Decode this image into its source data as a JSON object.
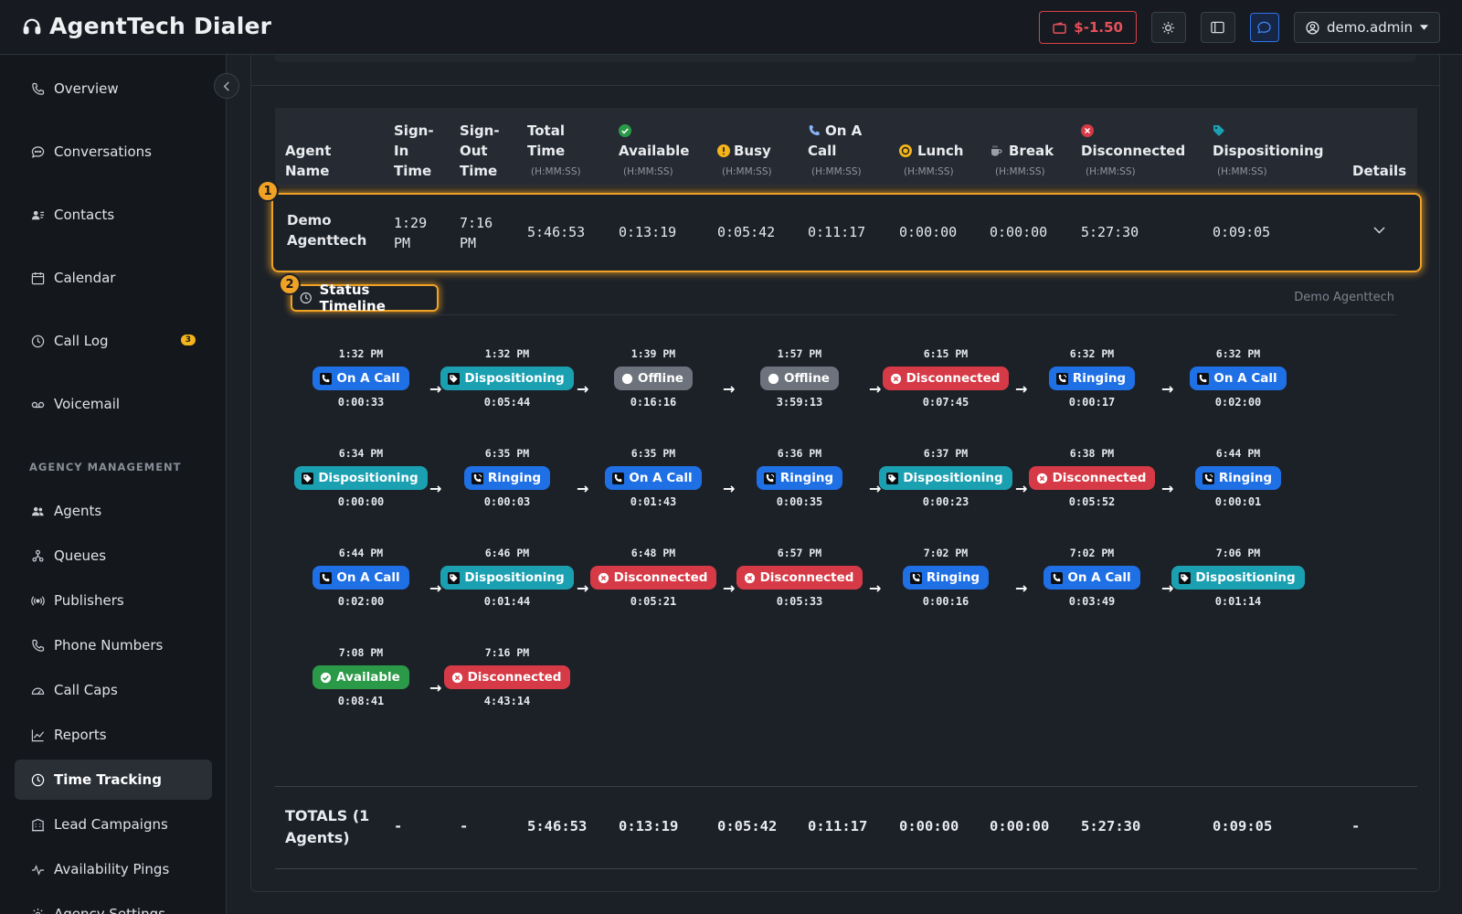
{
  "header": {
    "title": "AgentTech Dialer",
    "balance": "$-1.50",
    "user": "demo.admin"
  },
  "sidebar": {
    "items": [
      {
        "label": "Overview",
        "icon": "phone-icon"
      },
      {
        "label": "Conversations",
        "icon": "chat-icon"
      },
      {
        "label": "Contacts",
        "icon": "contacts-icon"
      },
      {
        "label": "Calendar",
        "icon": "calendar-icon"
      },
      {
        "label": "Call Log",
        "icon": "clock-icon",
        "badge": "3"
      },
      {
        "label": "Voicemail",
        "icon": "voicemail-icon"
      }
    ],
    "section_label": "AGENCY MANAGEMENT",
    "agency_items": [
      {
        "label": "Agents",
        "icon": "users-icon"
      },
      {
        "label": "Queues",
        "icon": "queue-icon"
      },
      {
        "label": "Publishers",
        "icon": "broadcast-icon"
      },
      {
        "label": "Phone Numbers",
        "icon": "phone-icon"
      },
      {
        "label": "Call Caps",
        "icon": "gauge-icon"
      },
      {
        "label": "Reports",
        "icon": "chart-icon"
      },
      {
        "label": "Time Tracking",
        "icon": "clock-icon",
        "active": true
      },
      {
        "label": "Lead Campaigns",
        "icon": "building-icon"
      },
      {
        "label": "Availability Pings",
        "icon": "pulse-icon"
      },
      {
        "label": "Agency Settings",
        "icon": "settings-icon"
      }
    ]
  },
  "table": {
    "headers": {
      "agent_name": [
        "Agent",
        "Name"
      ],
      "sign_in": [
        "Sign-",
        "In",
        "Time"
      ],
      "sign_out": [
        "Sign-",
        "Out",
        "Time"
      ],
      "total": [
        "Total",
        "Time"
      ],
      "available": "Available",
      "busy": "Busy",
      "on_a_call": [
        "On A",
        "Call"
      ],
      "lunch": "Lunch",
      "break": "Break",
      "disconnected": "Disconnected",
      "dispositioning": "Dispositioning",
      "details": "Details",
      "unit": "(H:MM:SS)"
    },
    "row": {
      "name": [
        "Demo",
        "Agenttech"
      ],
      "sign_in": [
        "1:29",
        "PM"
      ],
      "sign_out": [
        "7:16",
        "PM"
      ],
      "total": "5:46:53",
      "available": "0:13:19",
      "busy": "0:05:42",
      "on_a_call": "0:11:17",
      "lunch": "0:00:00",
      "break": "0:00:00",
      "disconnected": "5:27:30",
      "dispositioning": "0:09:05"
    },
    "markers": [
      "1",
      "2"
    ]
  },
  "timeline": {
    "title": "Status Timeline",
    "agent": "Demo Agenttech",
    "arrow": "→",
    "events": [
      {
        "time": "1:32 PM",
        "status": "On A Call",
        "kind": "call",
        "duration": "0:00:33"
      },
      {
        "time": "1:32 PM",
        "status": "Dispositioning",
        "kind": "dispo",
        "duration": "0:05:44"
      },
      {
        "time": "1:39 PM",
        "status": "Offline",
        "kind": "offline",
        "duration": "0:16:16"
      },
      {
        "time": "1:57 PM",
        "status": "Offline",
        "kind": "offline",
        "duration": "3:59:13"
      },
      {
        "time": "6:15 PM",
        "status": "Disconnected",
        "kind": "disc",
        "duration": "0:07:45"
      },
      {
        "time": "6:32 PM",
        "status": "Ringing",
        "kind": "ring",
        "duration": "0:00:17"
      },
      {
        "time": "6:32 PM",
        "status": "On A Call",
        "kind": "call",
        "duration": "0:02:00"
      },
      {
        "time": "6:34 PM",
        "status": "Dispositioning",
        "kind": "dispo",
        "duration": "0:00:00"
      },
      {
        "time": "6:35 PM",
        "status": "Ringing",
        "kind": "ring",
        "duration": "0:00:03"
      },
      {
        "time": "6:35 PM",
        "status": "On A Call",
        "kind": "call",
        "duration": "0:01:43"
      },
      {
        "time": "6:36 PM",
        "status": "Ringing",
        "kind": "ring",
        "duration": "0:00:35"
      },
      {
        "time": "6:37 PM",
        "status": "Dispositioning",
        "kind": "dispo",
        "duration": "0:00:23"
      },
      {
        "time": "6:38 PM",
        "status": "Disconnected",
        "kind": "disc",
        "duration": "0:05:52"
      },
      {
        "time": "6:44 PM",
        "status": "Ringing",
        "kind": "ring",
        "duration": "0:00:01"
      },
      {
        "time": "6:44 PM",
        "status": "On A Call",
        "kind": "call",
        "duration": "0:02:00"
      },
      {
        "time": "6:46 PM",
        "status": "Dispositioning",
        "kind": "dispo",
        "duration": "0:01:44"
      },
      {
        "time": "6:48 PM",
        "status": "Disconnected",
        "kind": "disc",
        "duration": "0:05:21"
      },
      {
        "time": "6:57 PM",
        "status": "Disconnected",
        "kind": "disc",
        "duration": "0:05:33"
      },
      {
        "time": "7:02 PM",
        "status": "Ringing",
        "kind": "ring",
        "duration": "0:00:16"
      },
      {
        "time": "7:02 PM",
        "status": "On A Call",
        "kind": "call",
        "duration": "0:03:49"
      },
      {
        "time": "7:06 PM",
        "status": "Dispositioning",
        "kind": "dispo",
        "duration": "0:01:14"
      },
      {
        "time": "7:08 PM",
        "status": "Available",
        "kind": "avail",
        "duration": "0:08:41"
      },
      {
        "time": "7:16 PM",
        "status": "Disconnected",
        "kind": "disc",
        "duration": "4:43:14"
      }
    ]
  },
  "totals": {
    "label": [
      "TOTALS (1",
      "Agents)"
    ],
    "sign_in": "-",
    "sign_out": "-",
    "total": "5:46:53",
    "available": "0:13:19",
    "busy": "0:05:42",
    "on_a_call": "0:11:17",
    "lunch": "0:00:00",
    "break": "0:00:00",
    "disconnected": "5:27:30",
    "dispositioning": "0:09:05",
    "details": "-"
  },
  "colors": {
    "call": "#1f6fe5",
    "ring": "#1f6fe5",
    "dispo": "#1ba0b2",
    "offline": "#6c737c",
    "disc": "#d63a46",
    "avail": "#2b9a48",
    "highlight": "#f0a225"
  }
}
